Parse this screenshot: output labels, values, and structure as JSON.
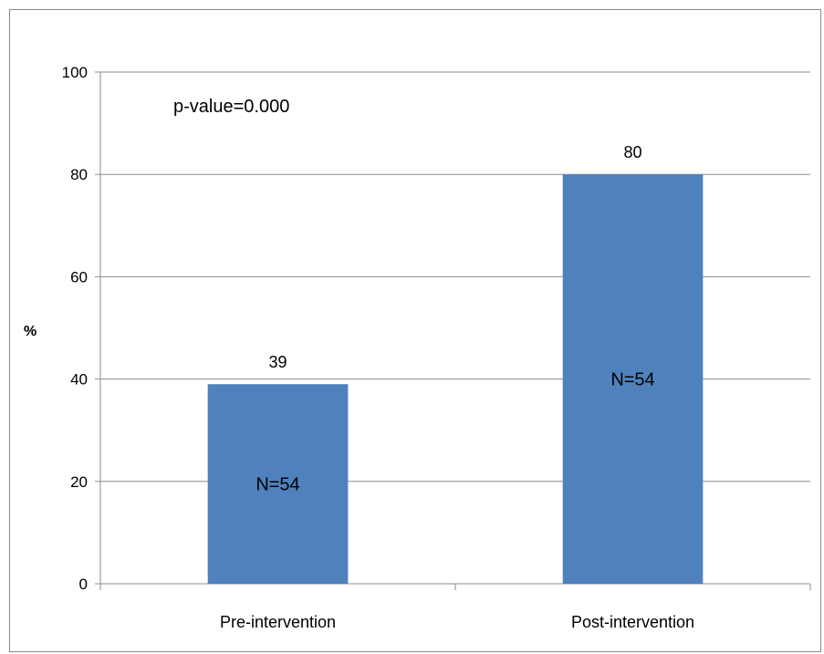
{
  "chart_data": {
    "type": "bar",
    "categories": [
      "Pre-intervention",
      "Post-intervention"
    ],
    "values": [
      39,
      80
    ],
    "data_labels": [
      "39",
      "80"
    ],
    "inner_labels": [
      "N=54",
      "N=54"
    ],
    "ylabel": "%",
    "ylim": [
      0,
      100
    ],
    "yticks": [
      0,
      20,
      40,
      60,
      80,
      100
    ],
    "annotation": "p-value=0.000",
    "grid": true,
    "bar_color": "#4f81bd",
    "legend": "none"
  }
}
